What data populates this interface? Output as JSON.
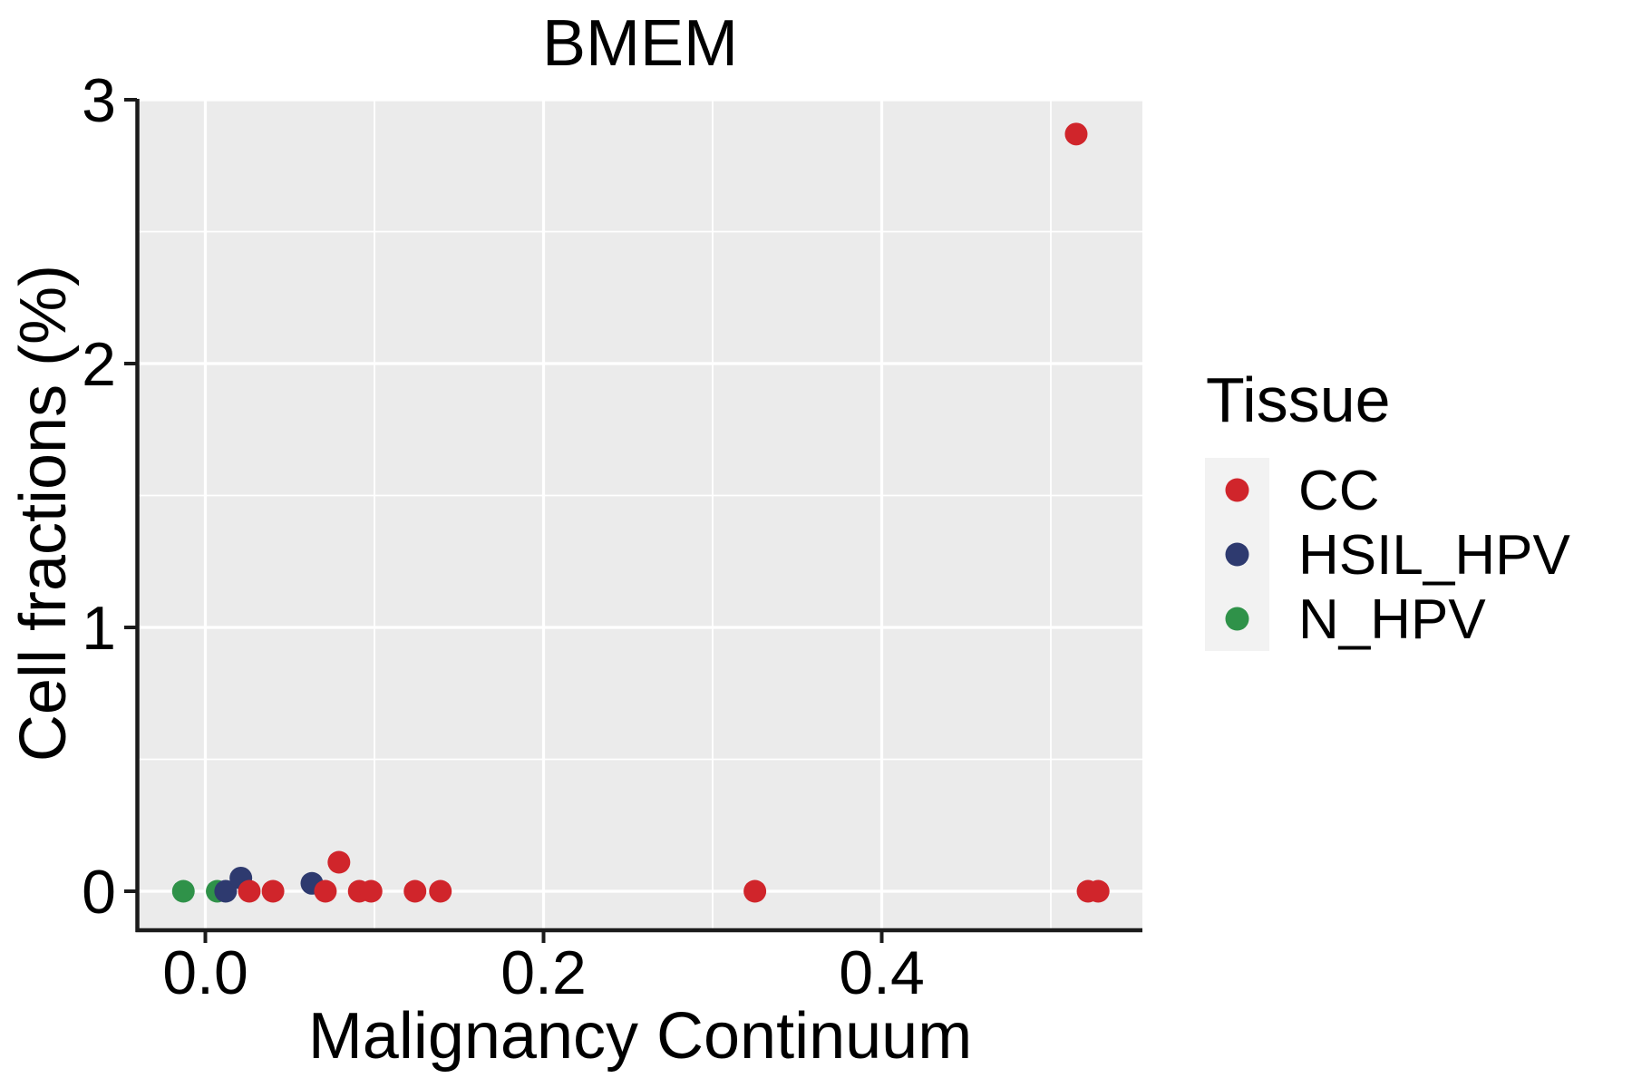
{
  "title": "BMEM",
  "axes": {
    "x_title": "Malignancy Continuum",
    "y_title": "Cell fractions (%)"
  },
  "legend": {
    "title": "Tissue",
    "items": [
      {
        "label": "CC",
        "color": "#D0252B"
      },
      {
        "label": "HSIL_HPV",
        "color": "#2E3A6F"
      },
      {
        "label": "N_HPV",
        "color": "#2F9249"
      }
    ]
  },
  "colors": {
    "panel_background": "#EBEBEB",
    "legend_key_background": "#F2F2F2",
    "gridline": "#FFFFFF",
    "axis": "#1B1B1B",
    "cc_red": "#D0252B",
    "hsil_navy": "#2E3A6F",
    "nhpv_green": "#2F9249"
  },
  "chart_data": {
    "type": "scatter",
    "title": "BMEM",
    "xlabel": "Malignancy Continuum",
    "ylabel": "Cell fractions (%)",
    "xlim": [
      -0.041,
      0.554
    ],
    "ylim": [
      -0.14,
      3.0
    ],
    "grid": true,
    "legend_position": "right",
    "x_ticks": [
      {
        "v": 0.0,
        "label": "0.0"
      },
      {
        "v": 0.2,
        "label": "0.2"
      },
      {
        "v": 0.4,
        "label": "0.4"
      }
    ],
    "x_minor_ticks": [
      0.1,
      0.3,
      0.5
    ],
    "y_ticks": [
      {
        "v": 0,
        "label": "0"
      },
      {
        "v": 1,
        "label": "1"
      },
      {
        "v": 2,
        "label": "2"
      },
      {
        "v": 3,
        "label": "3"
      }
    ],
    "y_minor_ticks": [
      0.5,
      1.5,
      2.5
    ],
    "series": [
      {
        "name": "N_HPV",
        "color": "#2F9249",
        "points": [
          [
            -0.013,
            0.0
          ],
          [
            0.007,
            0.0
          ]
        ]
      },
      {
        "name": "HSIL_HPV",
        "color": "#2E3A6F",
        "points": [
          [
            0.012,
            0.0
          ],
          [
            0.021,
            0.05
          ],
          [
            0.063,
            0.03
          ]
        ]
      },
      {
        "name": "CC",
        "color": "#D0252B",
        "points": [
          [
            0.026,
            0.0
          ],
          [
            0.04,
            0.0
          ],
          [
            0.071,
            0.0
          ],
          [
            0.079,
            0.11
          ],
          [
            0.091,
            0.0
          ],
          [
            0.098,
            0.0
          ],
          [
            0.124,
            0.0
          ],
          [
            0.139,
            0.0
          ],
          [
            0.325,
            0.0
          ],
          [
            0.522,
            0.0
          ],
          [
            0.528,
            0.0
          ],
          [
            0.515,
            2.87
          ]
        ]
      }
    ]
  }
}
